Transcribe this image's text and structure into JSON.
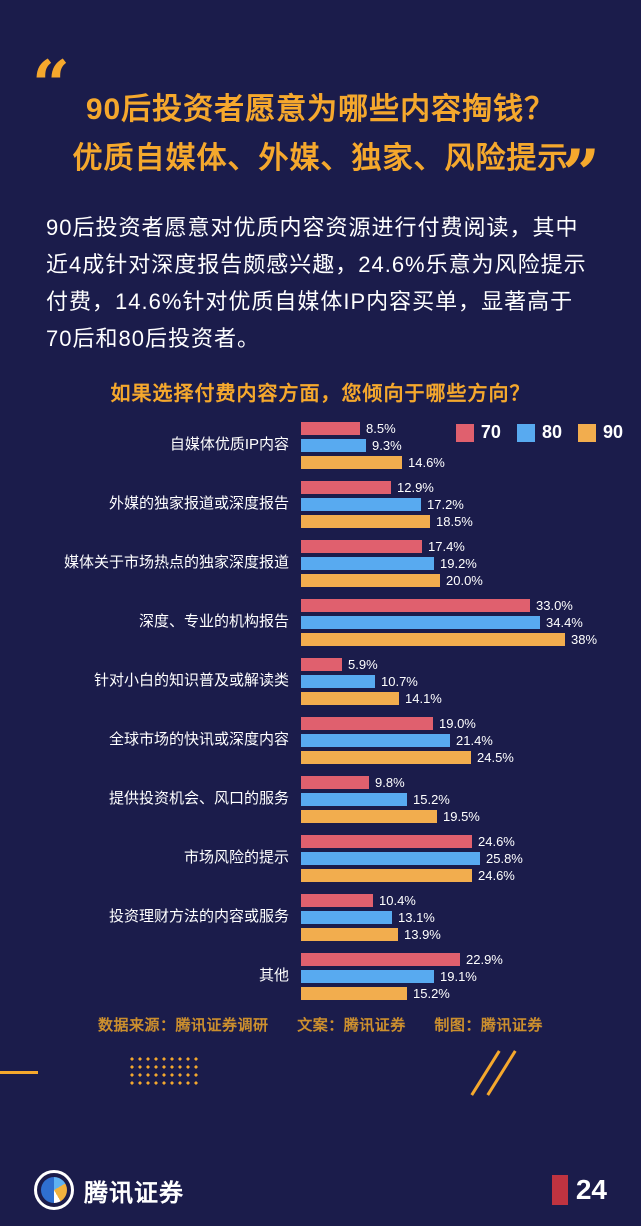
{
  "page": {
    "bg": "#1b1c4b",
    "accent": "#f5a82d",
    "marker_red": "#bf3340",
    "credits_color": "#cc8f2e",
    "quote_open": "“",
    "quote_close": "”"
  },
  "header": {
    "title_line1": "90后投资者愿意为哪些内容掏钱？",
    "title_line2": "优质自媒体、外媒、独家、风险提示"
  },
  "intro": "90后投资者愿意对优质内容资源进行付费阅读，其中近4成针对深度报告颇感兴趣，24.6%乐意为风险提示付费，14.6%针对优质自媒体IP内容买单，显著高于70后和80后投资者。",
  "chart_data": {
    "type": "bar",
    "orientation": "horizontal",
    "title": "如果选择付费内容方面，您倾向于哪些方向？",
    "xlim": [
      0,
      40
    ],
    "grid": false,
    "legend_position": "top-right",
    "categories": [
      "自媒体优质IP内容",
      "外媒的独家报道或深度报告",
      "媒体关于市场热点的独家深度报道",
      "深度、专业的机构报告",
      "针对小白的知识普及或解读类",
      "全球市场的快讯或深度内容",
      "提供投资机会、风口的服务",
      "市场风险的提示",
      "投资理财方法的内容或服务",
      "其他"
    ],
    "series": [
      {
        "name": "70",
        "color": "#e0606e",
        "values": [
          8.5,
          12.9,
          17.4,
          33.0,
          5.9,
          19.0,
          9.8,
          24.6,
          10.4,
          22.9
        ],
        "labels": [
          "8.5%",
          "12.9%",
          "17.4%",
          "33.0%",
          "5.9%",
          "19.0%",
          "9.8%",
          "24.6%",
          "10.4%",
          "22.9%"
        ]
      },
      {
        "name": "80",
        "color": "#58aaf0",
        "values": [
          9.3,
          17.2,
          19.2,
          34.4,
          10.7,
          21.4,
          15.2,
          25.8,
          13.1,
          19.1
        ],
        "labels": [
          "9.3%",
          "17.2%",
          "19.2%",
          "34.4%",
          "10.7%",
          "21.4%",
          "15.2%",
          "25.8%",
          "13.1%",
          "19.1%"
        ]
      },
      {
        "name": "90",
        "color": "#f2ad4e",
        "values": [
          14.6,
          18.5,
          20.0,
          38,
          14.1,
          24.5,
          19.5,
          24.6,
          13.9,
          15.2
        ],
        "labels": [
          "14.6%",
          "18.5%",
          "20.0%",
          "38%",
          "14.1%",
          "24.5%",
          "19.5%",
          "24.6%",
          "13.9%",
          "15.2%"
        ]
      }
    ]
  },
  "credits": {
    "source": "数据来源：腾讯证券调研",
    "copywriter": "文案：腾讯证券",
    "designer": "制图：腾讯证券"
  },
  "bottom_bar": {
    "brand": "腾讯证券",
    "page_number": "24"
  }
}
